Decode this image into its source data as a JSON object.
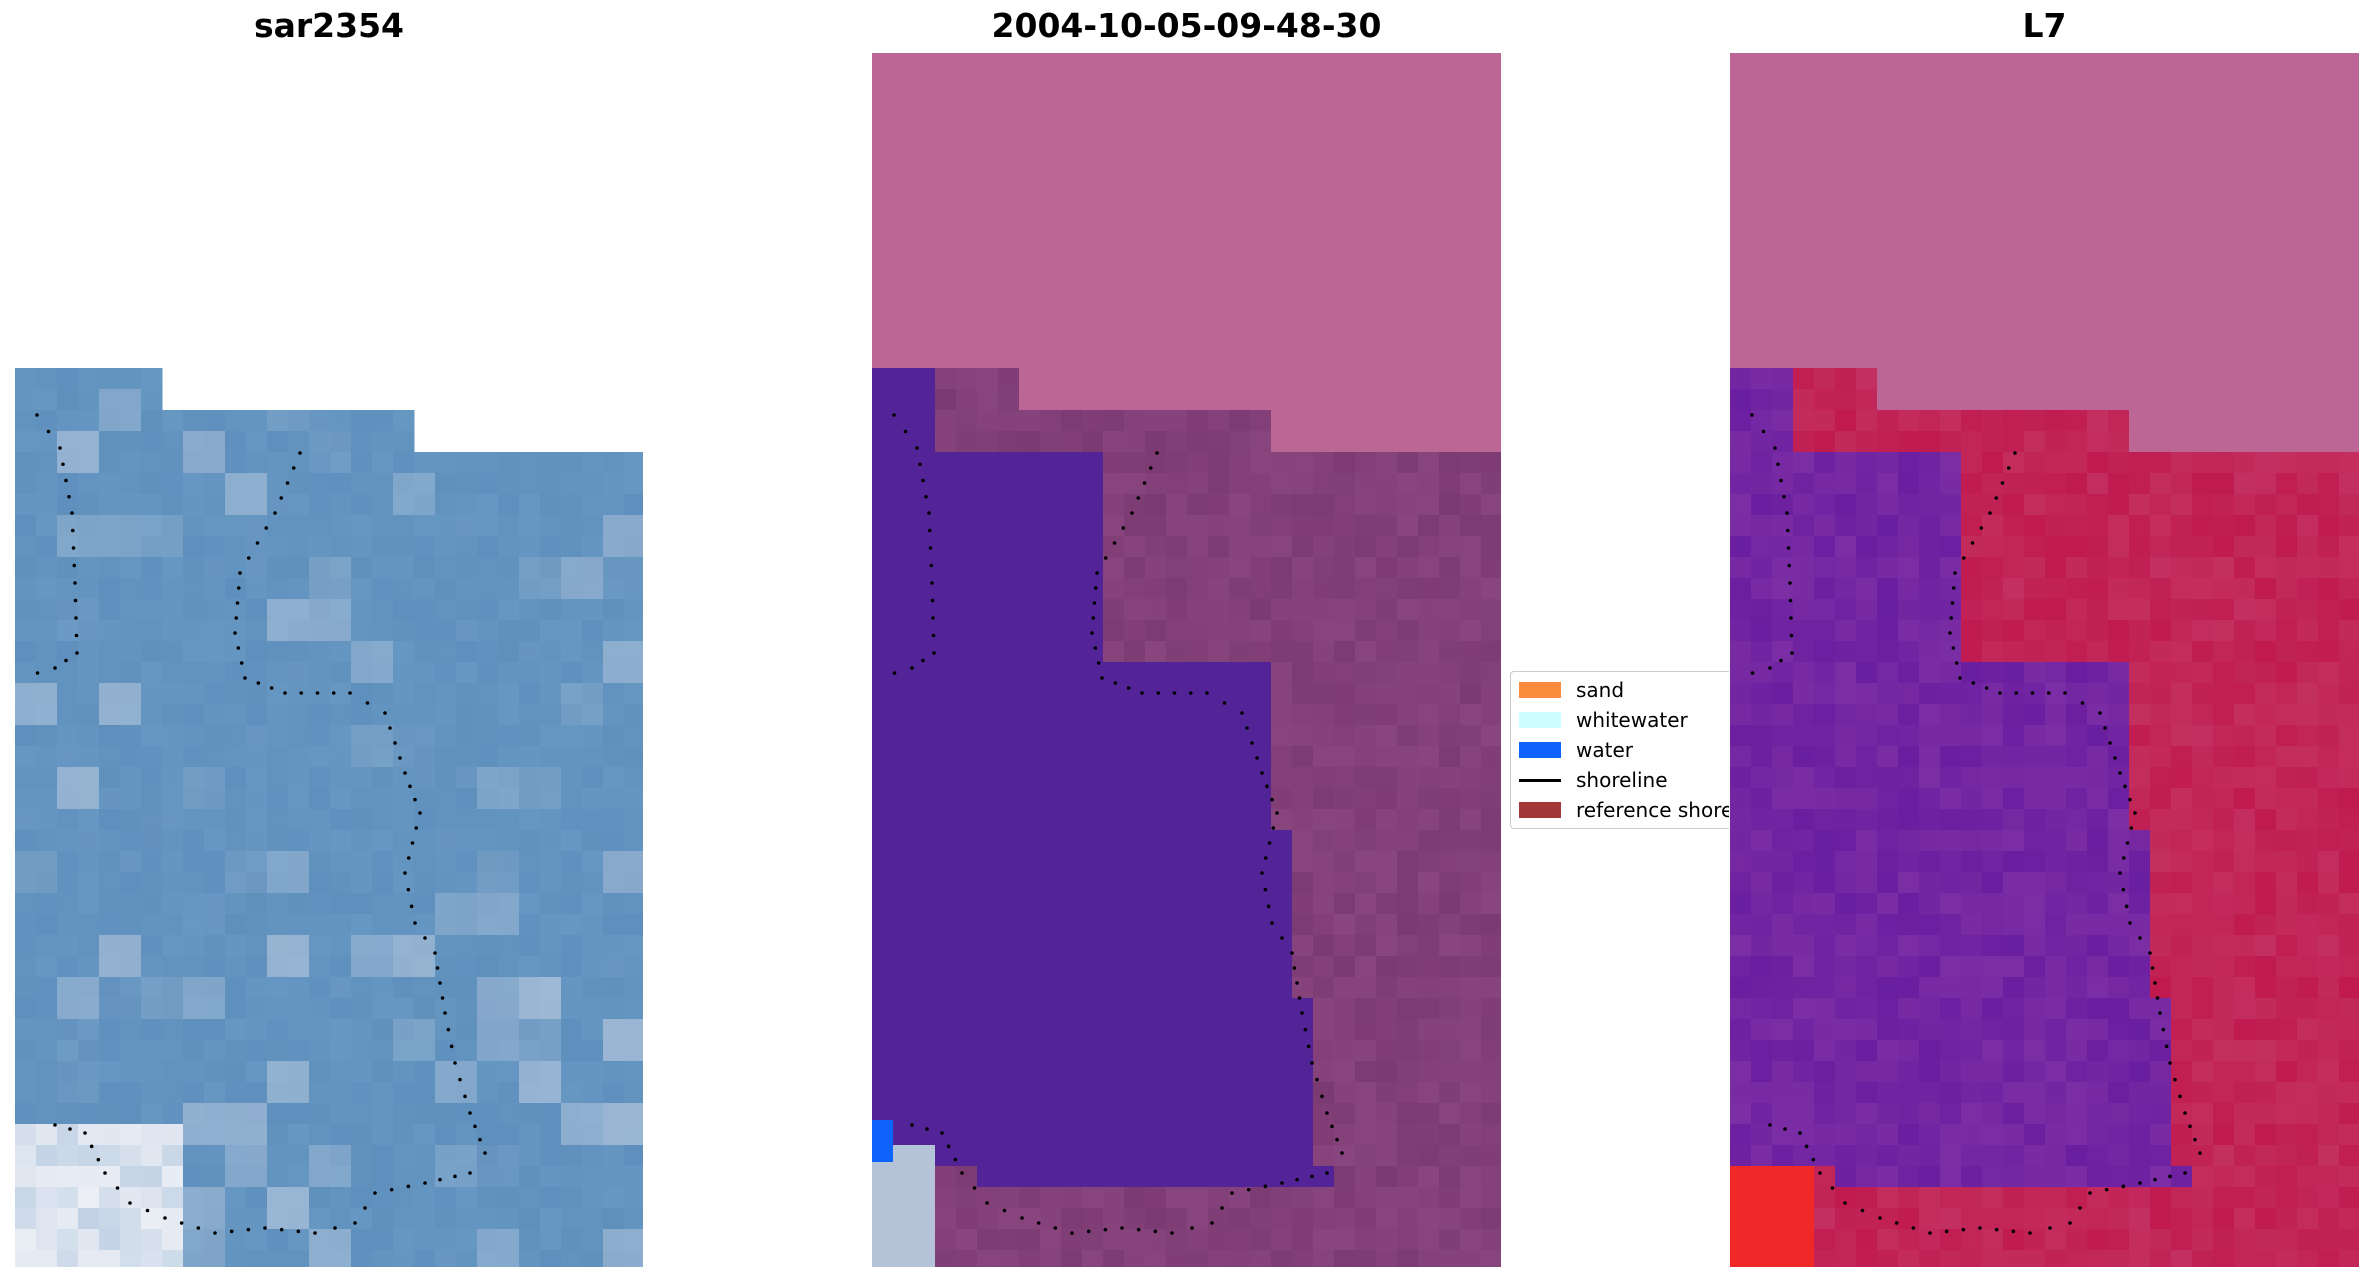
{
  "panels": [
    {
      "title": "sar2354"
    },
    {
      "title": "2004-10-05-09-48-30"
    },
    {
      "title": "L7"
    }
  ],
  "legend": {
    "items": [
      {
        "label": "sand",
        "color": "#fb8c3c",
        "kind": "patch"
      },
      {
        "label": "whitewater",
        "color": "#cdfdfd",
        "kind": "patch"
      },
      {
        "label": "water",
        "color": "#0d63fb",
        "kind": "patch"
      },
      {
        "label": "shoreline",
        "color": "#000000",
        "kind": "line"
      },
      {
        "label": "reference shoreline",
        "color": "#a33838",
        "kind": "patch"
      }
    ]
  },
  "colors": {
    "nodata_pink": "#bb6695",
    "water_class_purple": "#522497",
    "land_class_mauve": "#7c3a72",
    "rgb_water_blue": "#5f8fbc",
    "l7_water_purple": "#6a1ea0",
    "l7_land_red": "#c01a50",
    "shoreline_points": "#000000"
  }
}
